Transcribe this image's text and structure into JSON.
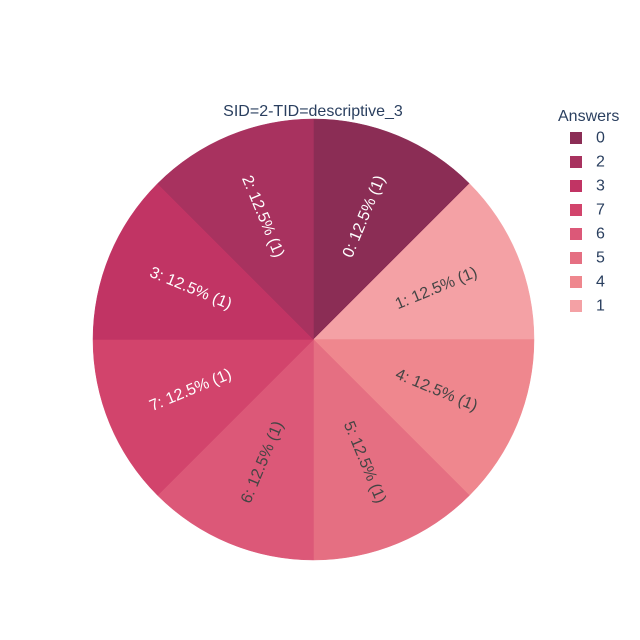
{
  "chart_data": {
    "type": "pie",
    "title": "SID=2-TID=descriptive_3",
    "legend_title": "Answers",
    "legend_position": "top-right",
    "slices": [
      {
        "label": "0",
        "value": 1,
        "percent": "12.5%",
        "color": "#8b2d55",
        "text_color": "#ffffff"
      },
      {
        "label": "1",
        "value": 1,
        "percent": "12.5%",
        "color": "#f4a1a5",
        "text_color": "#444444"
      },
      {
        "label": "4",
        "value": 1,
        "percent": "12.5%",
        "color": "#ef878e",
        "text_color": "#444444"
      },
      {
        "label": "5",
        "value": 1,
        "percent": "12.5%",
        "color": "#e56f82",
        "text_color": "#444444"
      },
      {
        "label": "6",
        "value": 1,
        "percent": "12.5%",
        "color": "#dc5878",
        "text_color": "#444444"
      },
      {
        "label": "7",
        "value": 1,
        "percent": "12.5%",
        "color": "#d2446c",
        "text_color": "#ffffff"
      },
      {
        "label": "3",
        "value": 1,
        "percent": "12.5%",
        "color": "#c13464",
        "text_color": "#ffffff"
      },
      {
        "label": "2",
        "value": 1,
        "percent": "12.5%",
        "color": "#a8325f",
        "text_color": "#ffffff"
      }
    ],
    "legend_order": [
      "0",
      "2",
      "3",
      "7",
      "6",
      "5",
      "4",
      "1"
    ]
  }
}
